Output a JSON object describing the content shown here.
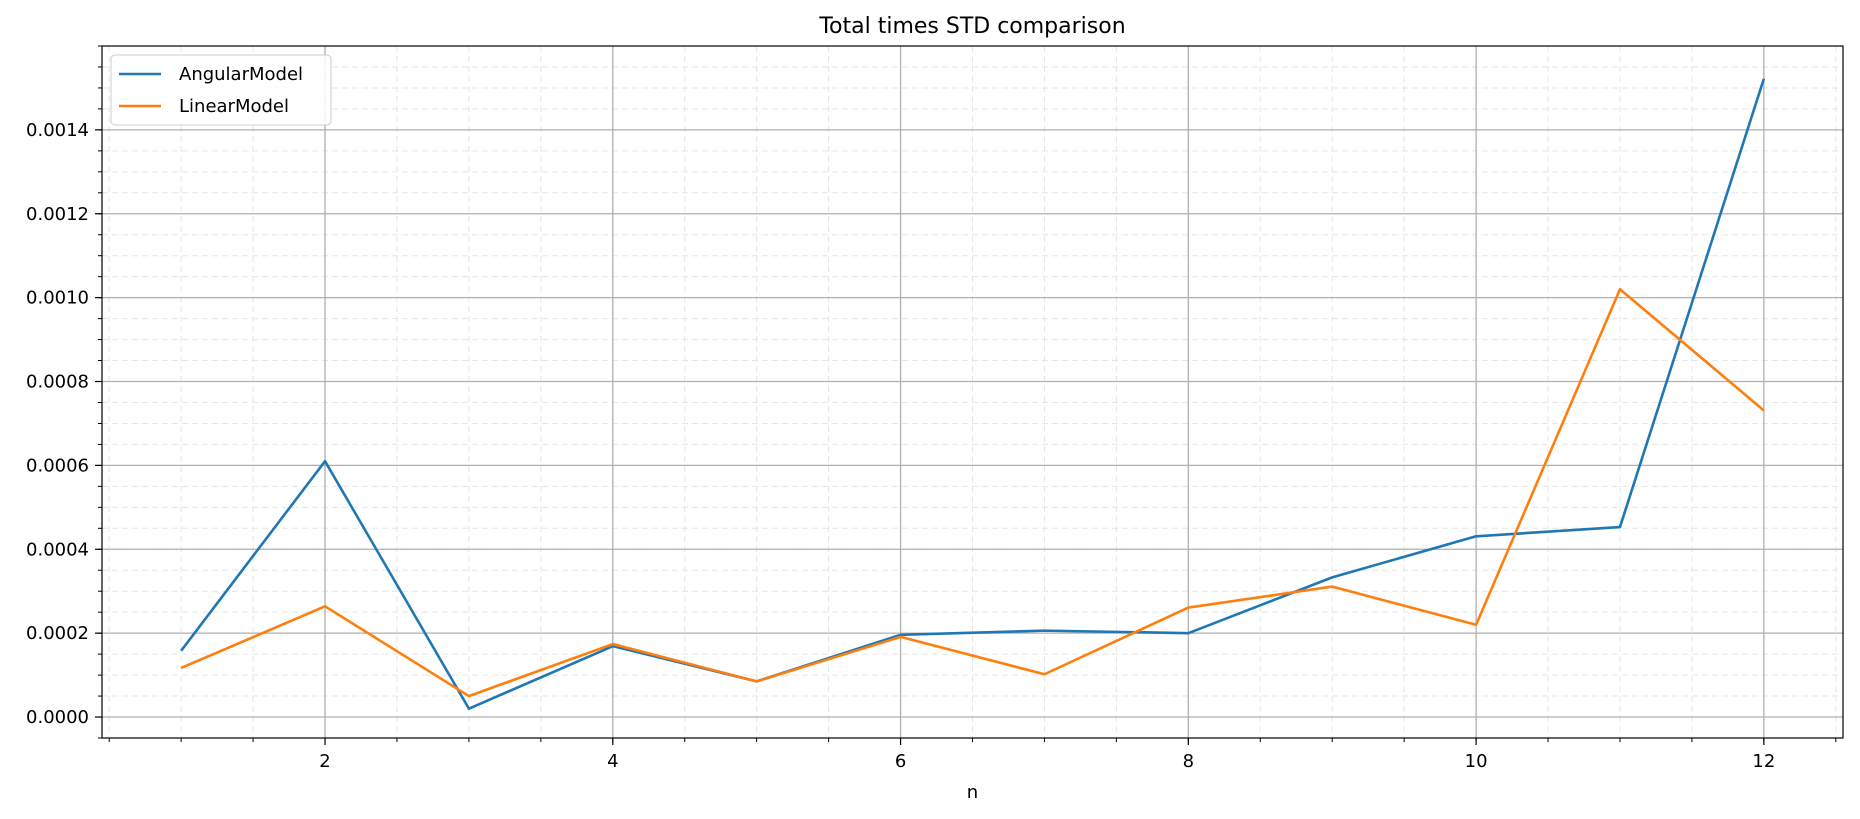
{
  "chart_data": {
    "type": "line",
    "title": "Total times STD comparison",
    "xlabel": "n",
    "ylabel": "",
    "xlim": [
      0.45,
      12.55
    ],
    "ylim": [
      -5e-05,
      0.0016
    ],
    "x_ticks": [
      2,
      4,
      6,
      8,
      10,
      12
    ],
    "x_tick_labels": [
      "2",
      "4",
      "6",
      "8",
      "10",
      "12"
    ],
    "y_ticks": [
      0,
      0.0002,
      0.0004,
      0.0006,
      0.0008,
      0.001,
      0.0012,
      0.0014
    ],
    "y_tick_labels": [
      "0.0000",
      "0.0002",
      "0.0004",
      "0.0006",
      "0.0008",
      "0.0010",
      "0.0012",
      "0.0014"
    ],
    "grid": true,
    "minor_grid": true,
    "legend_position": "top-left",
    "x": [
      1,
      2,
      3,
      4,
      5,
      6,
      7,
      8,
      9,
      10,
      11,
      12
    ],
    "series": [
      {
        "name": "AngularModel",
        "color": "#1f77b4",
        "values": [
          0.000158,
          0.00061,
          2e-05,
          0.000169,
          8.5e-05,
          0.000196,
          0.000206,
          0.0002,
          0.000333,
          0.000431,
          0.000453,
          0.001522
        ]
      },
      {
        "name": "LinearModel",
        "color": "#ff7f0e",
        "values": [
          0.000117,
          0.000264,
          5e-05,
          0.000174,
          8.5e-05,
          0.000191,
          0.000102,
          0.000261,
          0.000311,
          0.00022,
          0.00102,
          0.000731
        ]
      }
    ]
  }
}
